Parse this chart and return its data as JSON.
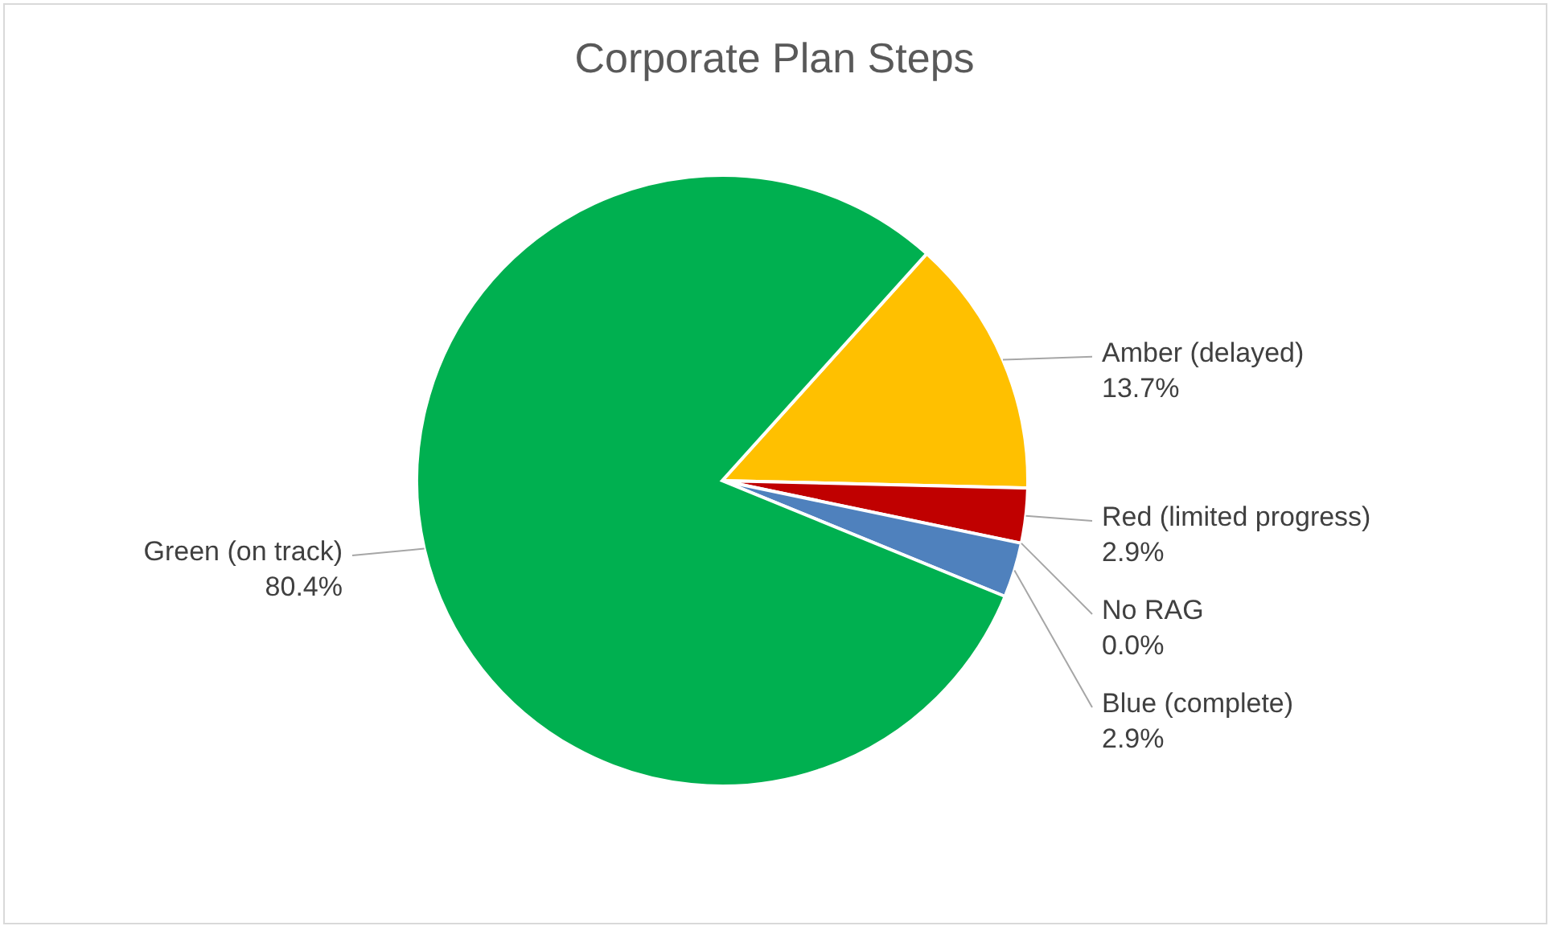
{
  "chart_data": {
    "type": "pie",
    "title": "Corporate Plan Steps",
    "categories": [
      "Amber (delayed)",
      "Red (limited progress)",
      "No RAG",
      "Blue (complete)",
      "Green (on track)"
    ],
    "values": [
      13.7,
      2.9,
      0.0,
      2.9,
      80.4
    ],
    "value_labels": [
      "13.7%",
      "2.9%",
      "0.0%",
      "2.9%",
      "80.4%"
    ],
    "colors": [
      "#ffc000",
      "#c00000",
      "#a5a5a5",
      "#4f81bd",
      "#00b050"
    ],
    "legend": false
  }
}
